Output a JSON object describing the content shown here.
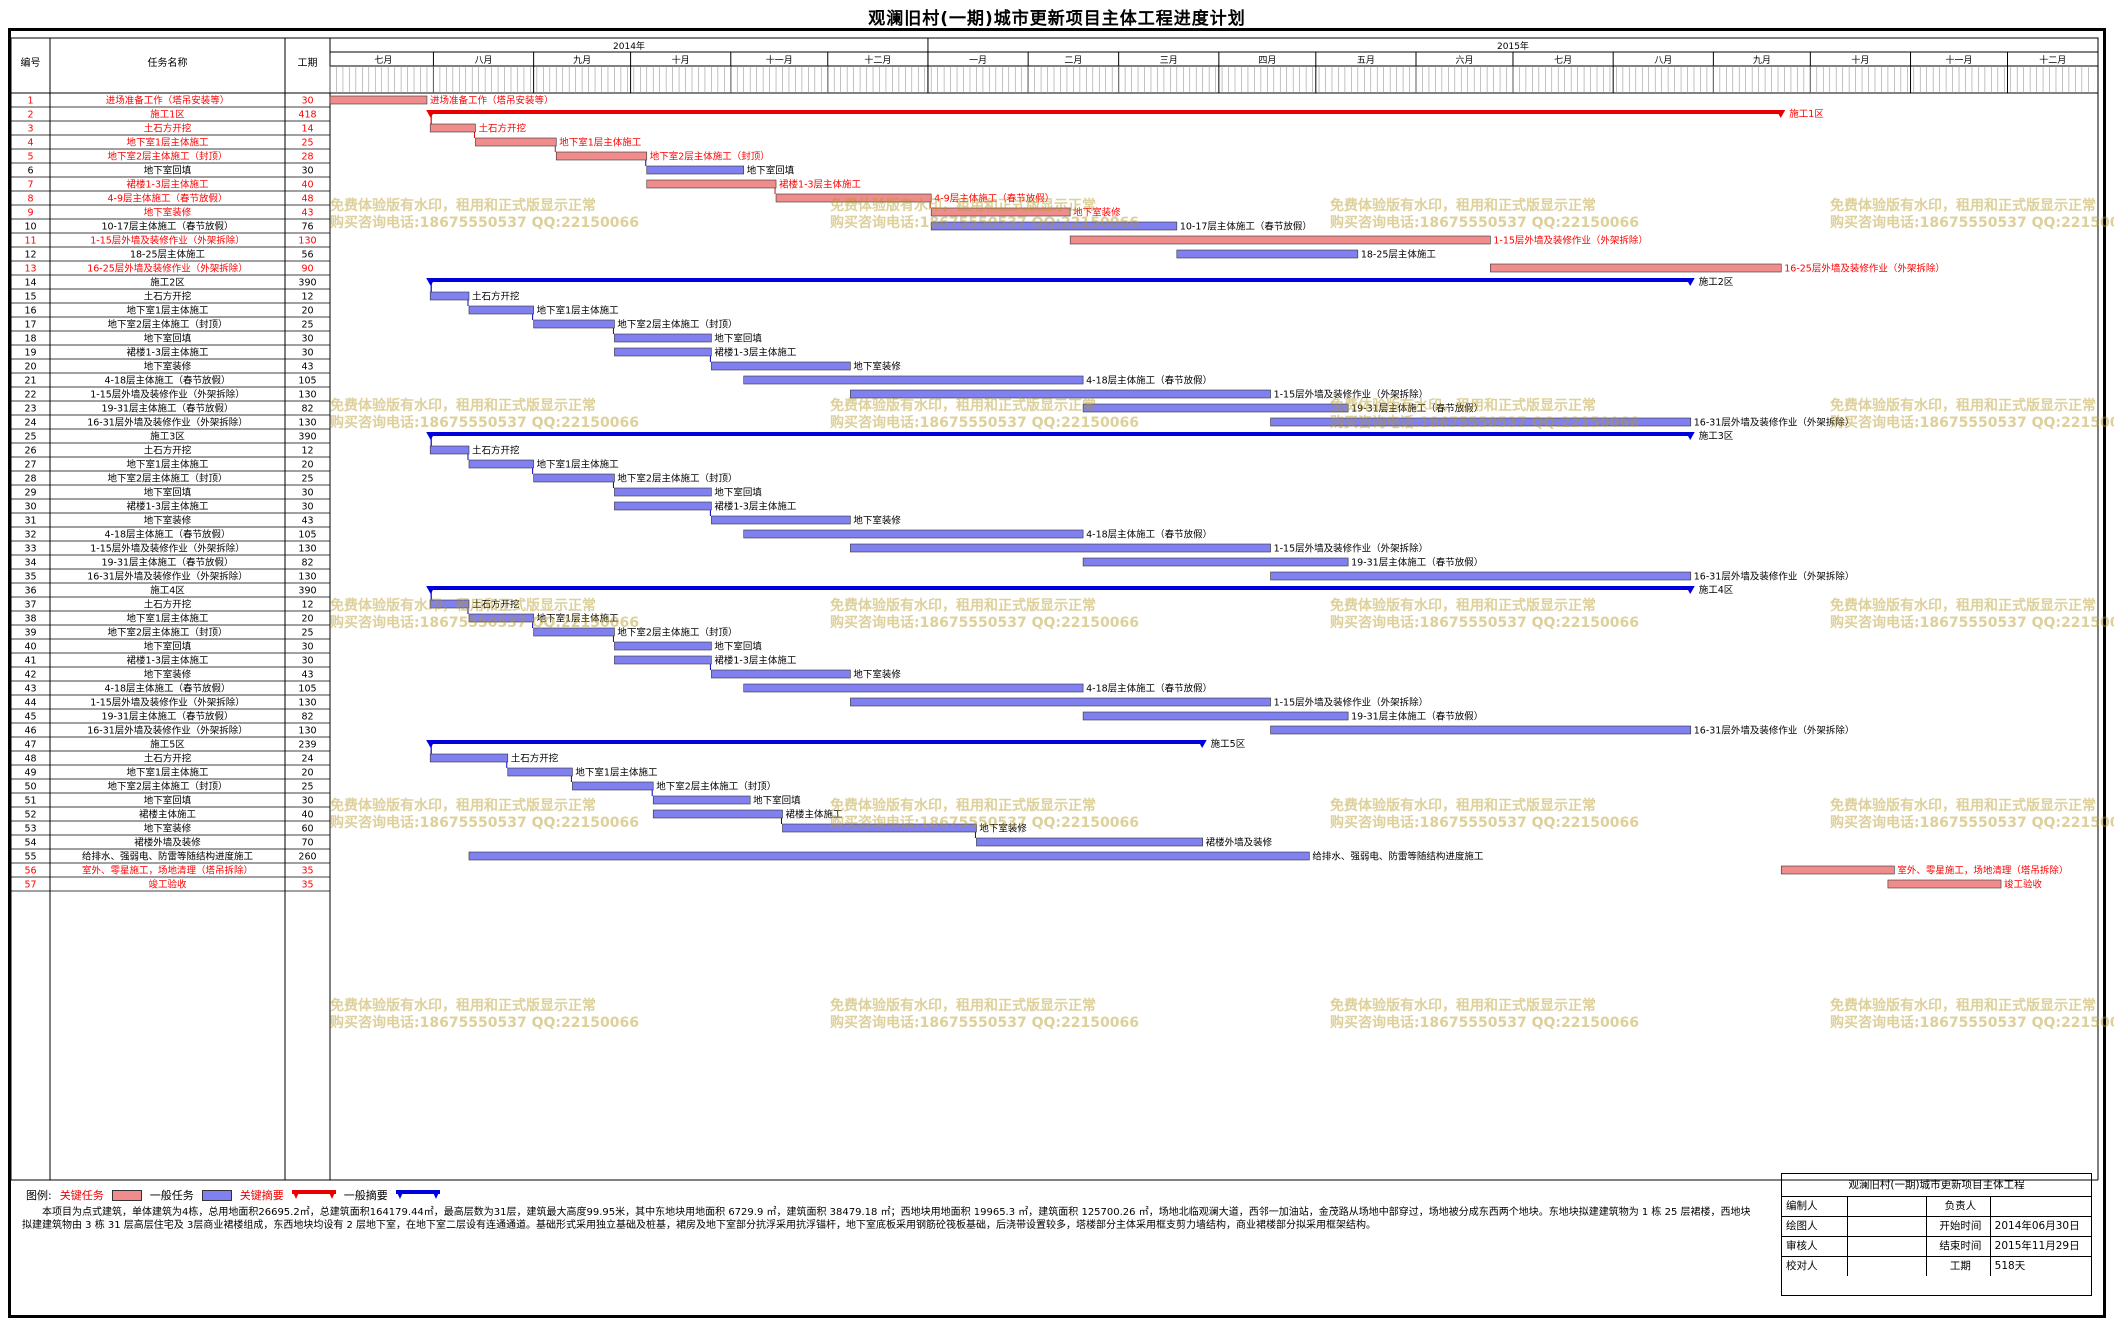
{
  "title": "观澜旧村(一期)城市更新项目主体工程进度计划",
  "headers": {
    "id": "编号",
    "name": "任务名称",
    "dur": "工期"
  },
  "colors": {
    "critical_bar": "#f08c8c",
    "normal_bar": "#8080f0",
    "critical_summary": "#e80000",
    "normal_summary": "#0000dd",
    "critical_text": "#ff0000",
    "link_blue": "#0000cc"
  },
  "years": [
    "2014年",
    "2015年"
  ],
  "months": [
    "七月",
    "八月",
    "九月",
    "十月",
    "十一月",
    "十二月",
    "一月",
    "二月",
    "三月",
    "四月",
    "五月",
    "六月",
    "七月",
    "八月",
    "九月",
    "十月",
    "十一月",
    "十二月"
  ],
  "watermark": {
    "line1": "免费体验版有水印，租用和正式版显示正常",
    "line2": "购买咨询电话:18675550537 QQ:22150066"
  },
  "chart_data": {
    "type": "gantt",
    "title": "观澜旧村(一期)城市更新项目主体工程进度计划",
    "time_axis": {
      "start": "2014-06-30",
      "end": "2015-11-29",
      "total_days": 518
    },
    "tasks": [
      {
        "id": "1",
        "name": "进场准备工作（塔吊安装等）",
        "dur": "30",
        "start": "2014-06-30",
        "type": "task",
        "critical": true
      },
      {
        "id": "2",
        "name": "施工1区",
        "dur": "418",
        "start": "2014-07-31",
        "type": "summary",
        "critical": true
      },
      {
        "id": "3",
        "name": "土石方开挖",
        "dur": "14",
        "start": "2014-07-31",
        "type": "task",
        "critical": true
      },
      {
        "id": "4",
        "name": "地下室1层主体施工",
        "dur": "25",
        "start": "2014-08-14",
        "type": "task",
        "critical": true
      },
      {
        "id": "5",
        "name": "地下室2层主体施工（封顶）",
        "dur": "28",
        "start": "2014-09-08",
        "type": "task",
        "critical": true
      },
      {
        "id": "6",
        "name": "地下室回填",
        "dur": "30",
        "start": "2014-10-06",
        "type": "task",
        "critical": false
      },
      {
        "id": "7",
        "name": "裙楼1-3层主体施工",
        "dur": "40",
        "start": "2014-10-06",
        "type": "task",
        "critical": true
      },
      {
        "id": "8",
        "name": "4-9层主体施工（春节放假）",
        "dur": "48",
        "start": "2014-11-15",
        "type": "task",
        "critical": true
      },
      {
        "id": "9",
        "name": "地下室装修",
        "dur": "43",
        "start": "2015-01-02",
        "type": "task",
        "critical": true
      },
      {
        "id": "10",
        "name": "10-17层主体施工（春节放假）",
        "dur": "76",
        "start": "2015-01-02",
        "type": "task",
        "critical": false
      },
      {
        "id": "11",
        "name": "1-15层外墙及装修作业（外架拆除）",
        "dur": "130",
        "start": "2015-02-14",
        "type": "task",
        "critical": true
      },
      {
        "id": "12",
        "name": "18-25层主体施工",
        "dur": "56",
        "start": "2015-03-19",
        "type": "task",
        "critical": false
      },
      {
        "id": "13",
        "name": "16-25层外墙及装修作业（外架拆除）",
        "dur": "90",
        "start": "2015-06-24",
        "type": "task",
        "critical": true
      },
      {
        "id": "14",
        "name": "施工2区",
        "dur": "390",
        "start": "2014-07-31",
        "type": "summary",
        "critical": false
      },
      {
        "id": "15",
        "name": "土石方开挖",
        "dur": "12",
        "start": "2014-07-31",
        "type": "task",
        "critical": false
      },
      {
        "id": "16",
        "name": "地下室1层主体施工",
        "dur": "20",
        "start": "2014-08-12",
        "type": "task",
        "critical": false
      },
      {
        "id": "17",
        "name": "地下室2层主体施工（封顶）",
        "dur": "25",
        "start": "2014-09-01",
        "type": "task",
        "critical": false
      },
      {
        "id": "18",
        "name": "地下室回填",
        "dur": "30",
        "start": "2014-09-26",
        "type": "task",
        "critical": false
      },
      {
        "id": "19",
        "name": "裙楼1-3层主体施工",
        "dur": "30",
        "start": "2014-09-26",
        "type": "task",
        "critical": false
      },
      {
        "id": "20",
        "name": "地下室装修",
        "dur": "43",
        "start": "2014-10-26",
        "type": "task",
        "critical": false
      },
      {
        "id": "21",
        "name": "4-18层主体施工（春节放假）",
        "dur": "105",
        "start": "2014-11-05",
        "type": "task",
        "critical": false
      },
      {
        "id": "22",
        "name": "1-15层外墙及装修作业（外架拆除）",
        "dur": "130",
        "start": "2014-12-08",
        "type": "task",
        "critical": false
      },
      {
        "id": "23",
        "name": "19-31层主体施工（春节放假）",
        "dur": "82",
        "start": "2015-02-18",
        "type": "task",
        "critical": false
      },
      {
        "id": "24",
        "name": "16-31层外墙及装修作业（外架拆除）",
        "dur": "130",
        "start": "2015-04-17",
        "type": "task",
        "critical": false
      },
      {
        "id": "25",
        "name": "施工3区",
        "dur": "390",
        "start": "2014-07-31",
        "type": "summary",
        "critical": false
      },
      {
        "id": "26",
        "name": "土石方开挖",
        "dur": "12",
        "start": "2014-07-31",
        "type": "task",
        "critical": false
      },
      {
        "id": "27",
        "name": "地下室1层主体施工",
        "dur": "20",
        "start": "2014-08-12",
        "type": "task",
        "critical": false
      },
      {
        "id": "28",
        "name": "地下室2层主体施工（封顶）",
        "dur": "25",
        "start": "2014-09-01",
        "type": "task",
        "critical": false
      },
      {
        "id": "29",
        "name": "地下室回填",
        "dur": "30",
        "start": "2014-09-26",
        "type": "task",
        "critical": false
      },
      {
        "id": "30",
        "name": "裙楼1-3层主体施工",
        "dur": "30",
        "start": "2014-09-26",
        "type": "task",
        "critical": false
      },
      {
        "id": "31",
        "name": "地下室装修",
        "dur": "43",
        "start": "2014-10-26",
        "type": "task",
        "critical": false
      },
      {
        "id": "32",
        "name": "4-18层主体施工（春节放假）",
        "dur": "105",
        "start": "2014-11-05",
        "type": "task",
        "critical": false
      },
      {
        "id": "33",
        "name": "1-15层外墙及装修作业（外架拆除）",
        "dur": "130",
        "start": "2014-12-08",
        "type": "task",
        "critical": false
      },
      {
        "id": "34",
        "name": "19-31层主体施工（春节放假）",
        "dur": "82",
        "start": "2015-02-18",
        "type": "task",
        "critical": false
      },
      {
        "id": "35",
        "name": "16-31层外墙及装修作业（外架拆除）",
        "dur": "130",
        "start": "2015-04-17",
        "type": "task",
        "critical": false
      },
      {
        "id": "36",
        "name": "施工4区",
        "dur": "390",
        "start": "2014-07-31",
        "type": "summary",
        "critical": false
      },
      {
        "id": "37",
        "name": "土石方开挖",
        "dur": "12",
        "start": "2014-07-31",
        "type": "task",
        "critical": false
      },
      {
        "id": "38",
        "name": "地下室1层主体施工",
        "dur": "20",
        "start": "2014-08-12",
        "type": "task",
        "critical": false
      },
      {
        "id": "39",
        "name": "地下室2层主体施工（封顶）",
        "dur": "25",
        "start": "2014-09-01",
        "type": "task",
        "critical": false
      },
      {
        "id": "40",
        "name": "地下室回填",
        "dur": "30",
        "start": "2014-09-26",
        "type": "task",
        "critical": false
      },
      {
        "id": "41",
        "name": "裙楼1-3层主体施工",
        "dur": "30",
        "start": "2014-09-26",
        "type": "task",
        "critical": false
      },
      {
        "id": "42",
        "name": "地下室装修",
        "dur": "43",
        "start": "2014-10-26",
        "type": "task",
        "critical": false
      },
      {
        "id": "43",
        "name": "4-18层主体施工（春节放假）",
        "dur": "105",
        "start": "2014-11-05",
        "type": "task",
        "critical": false
      },
      {
        "id": "44",
        "name": "1-15层外墙及装修作业（外架拆除）",
        "dur": "130",
        "start": "2014-12-08",
        "type": "task",
        "critical": false
      },
      {
        "id": "45",
        "name": "19-31层主体施工（春节放假）",
        "dur": "82",
        "start": "2015-02-18",
        "type": "task",
        "critical": false
      },
      {
        "id": "46",
        "name": "16-31层外墙及装修作业（外架拆除）",
        "dur": "130",
        "start": "2015-04-17",
        "type": "task",
        "critical": false
      },
      {
        "id": "47",
        "name": "施工5区",
        "dur": "239",
        "start": "2014-07-31",
        "type": "summary",
        "critical": false
      },
      {
        "id": "48",
        "name": "土石方开挖",
        "dur": "24",
        "start": "2014-07-31",
        "type": "task",
        "critical": false
      },
      {
        "id": "49",
        "name": "地下室1层主体施工",
        "dur": "20",
        "start": "2014-08-24",
        "type": "task",
        "critical": false
      },
      {
        "id": "50",
        "name": "地下室2层主体施工（封顶）",
        "dur": "25",
        "start": "2014-09-13",
        "type": "task",
        "critical": false
      },
      {
        "id": "51",
        "name": "地下室回填",
        "dur": "30",
        "start": "2014-10-08",
        "type": "task",
        "critical": false
      },
      {
        "id": "52",
        "name": "裙楼主体施工",
        "dur": "40",
        "start": "2014-10-08",
        "type": "task",
        "critical": false
      },
      {
        "id": "53",
        "name": "地下室装修",
        "dur": "60",
        "start": "2014-11-17",
        "type": "task",
        "critical": false
      },
      {
        "id": "54",
        "name": "裙楼外墙及装修",
        "dur": "70",
        "start": "2015-01-16",
        "type": "task",
        "critical": false
      },
      {
        "id": "55",
        "name": "给排水、强弱电、防雷等随结构进度施工",
        "dur": "260",
        "start": "2014-08-12",
        "type": "task",
        "critical": false
      },
      {
        "id": "56",
        "name": "室外、零星施工，场地清理（塔吊拆除）",
        "dur": "35",
        "start": "2015-09-22",
        "type": "task",
        "critical": true
      },
      {
        "id": "57",
        "name": "竣工验收",
        "dur": "35",
        "start": "2015-10-25",
        "type": "task",
        "critical": true
      }
    ]
  },
  "legend": {
    "label": "图例:",
    "critical_task": "关键任务",
    "normal_task": "一般任务",
    "critical_summary": "关键摘要",
    "normal_summary": "一般摘要"
  },
  "description": "本项目为点式建筑，单体建筑为4栋，总用地面积26695.2㎡，总建筑面积164179.44㎡，最高层数为31层，建筑最大高度99.95米，其中东地块用地面积 6729.9 ㎡，建筑面积 38479.18 ㎡；西地块用地面积 19965.3 ㎡，建筑面积 125700.26 ㎡，场地北临观澜大道，西邻一加油站，金茂路从场地中部穿过，场地被分成东西两个地块。东地块拟建建筑物为 1 栋 25 层裙楼，西地块拟建建筑物由 3 栋 31 层高层住宅及 3层商业裙楼组成，东西地块均设有 2 层地下室，在地下室二层设有连通通道。基础形式采用独立基础及桩基，裙房及地下室部分抗浮采用抗浮锚杆，地下室底板采用钢筋砼筏板基础，后浇带设置较多，塔楼部分主体采用框支剪力墙结构，商业裙楼部分拟采用框架结构。",
  "title_block": {
    "header": "观澜旧村(一期)城市更新项目主体工程",
    "rows": [
      [
        "编制人",
        "",
        "负责人",
        ""
      ],
      [
        "绘图人",
        "",
        "开始时间",
        "2014年06月30日"
      ],
      [
        "审核人",
        "",
        "结束时间",
        "2015年11月29日"
      ],
      [
        "校对人",
        "",
        "工期",
        "518天"
      ]
    ]
  }
}
